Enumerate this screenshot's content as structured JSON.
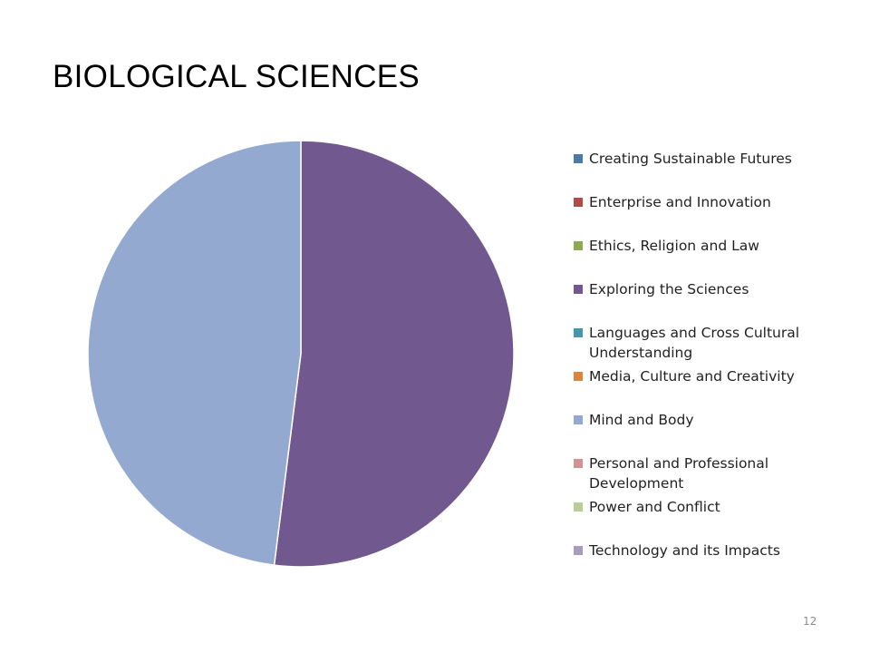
{
  "slide": {
    "title": "BIOLOGICAL SCIENCES",
    "page_number": "12"
  },
  "chart_data": {
    "type": "pie",
    "title": "BIOLOGICAL SCIENCES",
    "legend_position": "right",
    "categories": [
      "Creating Sustainable Futures",
      "Enterprise and Innovation",
      "Ethics, Religion and Law",
      "Exploring the Sciences",
      "Languages and Cross Cultural Understanding",
      "Media, Culture and Creativity",
      "Mind and Body",
      "Personal and Professional Development",
      "Power and Conflict",
      "Technology and its Impacts"
    ],
    "values": [
      0,
      0,
      0,
      52,
      0,
      0,
      48,
      0,
      0,
      0
    ],
    "colors": [
      "#4A7BA7",
      "#B24B48",
      "#8DAA4E",
      "#71588F",
      "#4198AF",
      "#DB843D",
      "#93A9CF",
      "#D19392",
      "#B9CD96",
      "#A99BBD"
    ]
  }
}
